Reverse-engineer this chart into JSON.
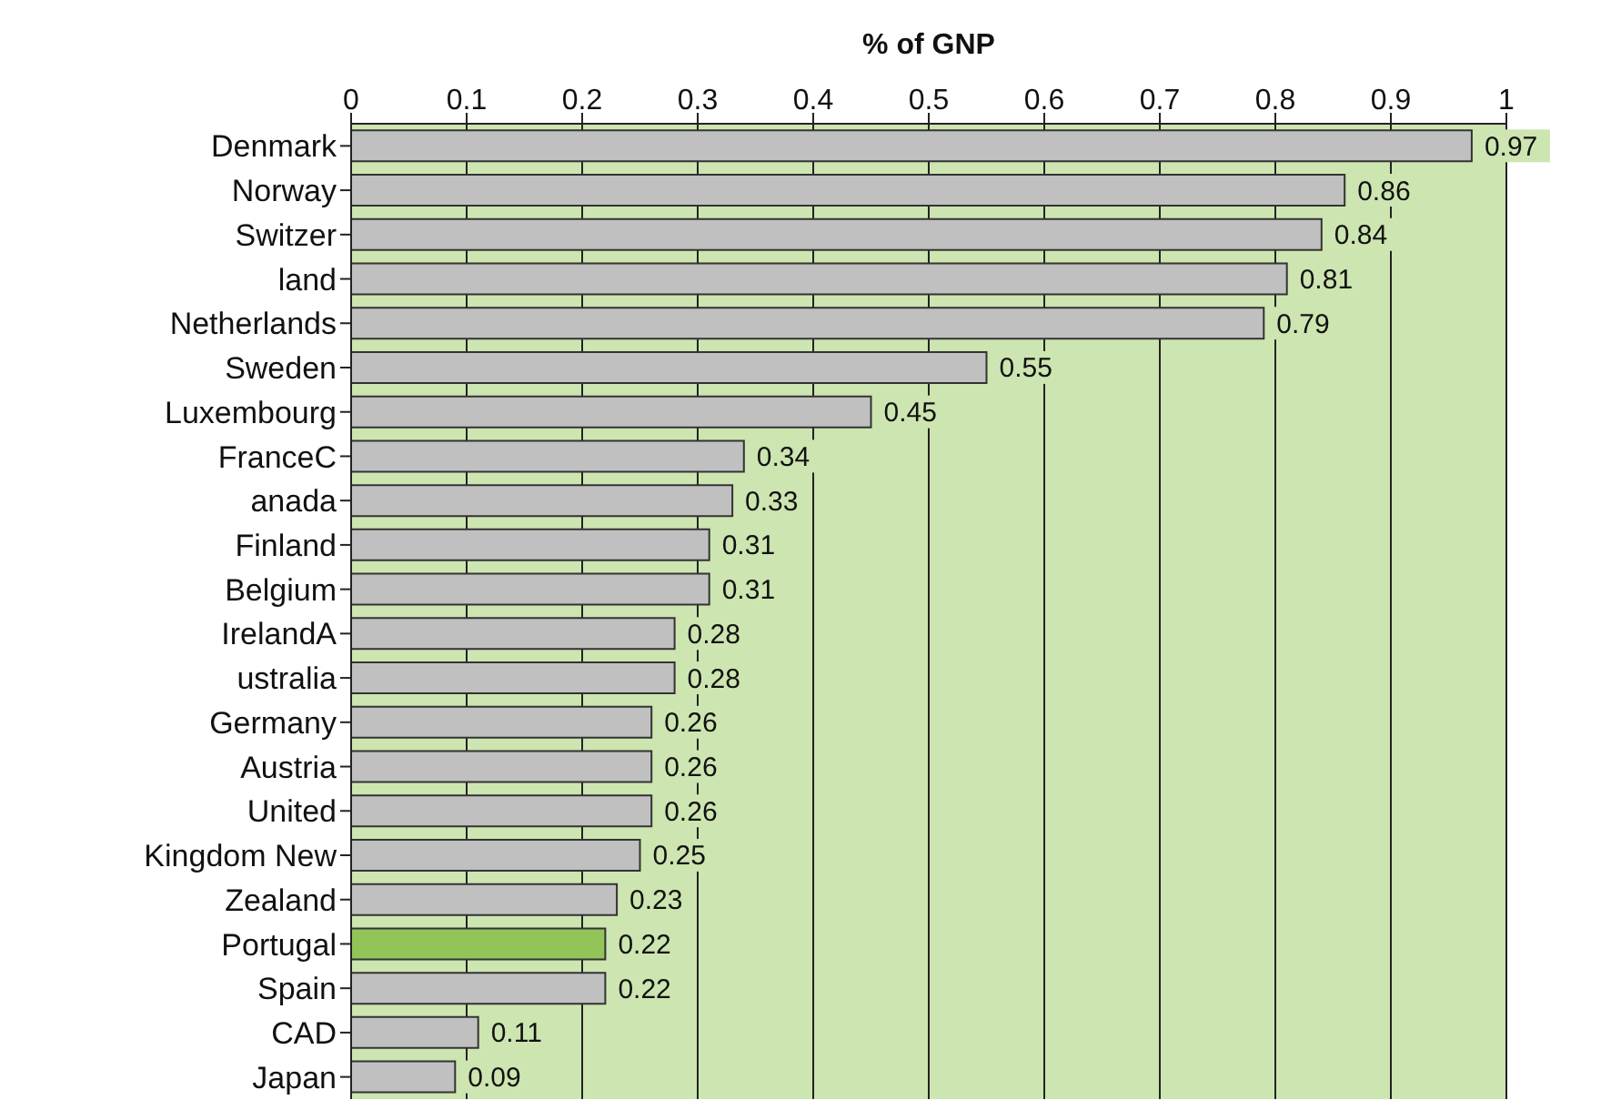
{
  "chart_data": {
    "type": "bar",
    "orientation": "horizontal",
    "xlabel": "% of GNP",
    "categories": [
      "Denmark",
      "Norway",
      "Switzer",
      "land",
      "Netherlands",
      "Sweden",
      "Luxembourg",
      "FranceC",
      "anada",
      "Finland",
      "Belgium",
      "IrelandA",
      "ustralia",
      "Germany",
      "Austria",
      "United",
      "Kingdom New",
      "Zealand",
      "Portugal",
      "Spain",
      "CAD",
      "Japan"
    ],
    "values": [
      0.97,
      0.86,
      0.84,
      0.81,
      0.79,
      0.55,
      0.45,
      0.34,
      0.33,
      0.31,
      0.31,
      0.28,
      0.28,
      0.26,
      0.26,
      0.26,
      0.25,
      0.23,
      0.22,
      0.22,
      0.11,
      0.09
    ],
    "colors": [
      "#c0c0c0",
      "#c0c0c0",
      "#c0c0c0",
      "#c0c0c0",
      "#c0c0c0",
      "#c0c0c0",
      "#c0c0c0",
      "#c0c0c0",
      "#c0c0c0",
      "#c0c0c0",
      "#c0c0c0",
      "#c0c0c0",
      "#c0c0c0",
      "#c0c0c0",
      "#c0c0c0",
      "#c0c0c0",
      "#c0c0c0",
      "#c0c0c0",
      "#92c45a",
      "#c0c0c0",
      "#c0c0c0",
      "#c0c0c0"
    ],
    "xlim": [
      0,
      1
    ],
    "xticks": [
      0,
      0.1,
      0.2,
      0.3,
      0.4,
      0.5,
      0.6,
      0.7,
      0.8,
      0.9,
      1
    ],
    "grid": "x",
    "data_labels": true
  }
}
